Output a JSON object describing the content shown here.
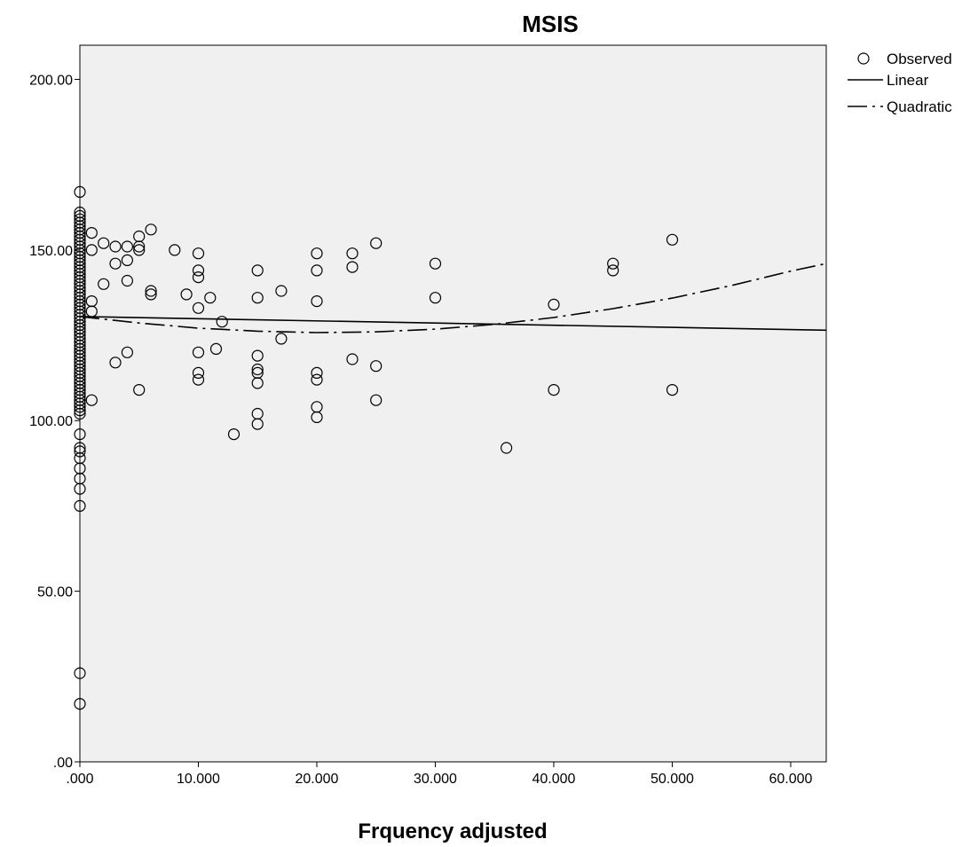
{
  "chart_data": {
    "type": "scatter",
    "title": "MSIS",
    "xlabel": "Frquency adjusted",
    "ylabel": "",
    "xlim": [
      0,
      63
    ],
    "ylim": [
      0,
      210
    ],
    "x_ticks": [
      0,
      10,
      20,
      30,
      40,
      50,
      60
    ],
    "x_tick_labels": [
      ".000",
      "10.000",
      "20.000",
      "30.000",
      "40.000",
      "50.000",
      "60.000"
    ],
    "y_ticks": [
      0,
      50,
      100,
      150,
      200
    ],
    "y_tick_labels": [
      ".00",
      "50.00",
      "100.00",
      "150.00",
      "200.00"
    ],
    "grid": false,
    "legend_position": "top-right",
    "colors": {
      "plot_background": "#f0f0f0",
      "axis": "#000000",
      "marker": "#000000"
    },
    "legend": [
      {
        "label": "Observed",
        "symbol": "circle"
      },
      {
        "label": "Linear",
        "symbol": "solid-line"
      },
      {
        "label": "Quadratic",
        "symbol": "dash-dot-line"
      }
    ],
    "series": [
      {
        "name": "Observed",
        "kind": "points",
        "points": [
          [
            0,
            167
          ],
          [
            0,
            161
          ],
          [
            0,
            160
          ],
          [
            0,
            159
          ],
          [
            0,
            158
          ],
          [
            0,
            157
          ],
          [
            0,
            156
          ],
          [
            0,
            155
          ],
          [
            0,
            154
          ],
          [
            0,
            153
          ],
          [
            0,
            152
          ],
          [
            0,
            151
          ],
          [
            0,
            150
          ],
          [
            0,
            149
          ],
          [
            0,
            148
          ],
          [
            0,
            147
          ],
          [
            0,
            146
          ],
          [
            0,
            145
          ],
          [
            0,
            144
          ],
          [
            0,
            143
          ],
          [
            0,
            142
          ],
          [
            0,
            141
          ],
          [
            0,
            140
          ],
          [
            0,
            139
          ],
          [
            0,
            138
          ],
          [
            0,
            137
          ],
          [
            0,
            136
          ],
          [
            0,
            135
          ],
          [
            0,
            134
          ],
          [
            0,
            133
          ],
          [
            0,
            132
          ],
          [
            0,
            131
          ],
          [
            0,
            130
          ],
          [
            0,
            129
          ],
          [
            0,
            128
          ],
          [
            0,
            127
          ],
          [
            0,
            126
          ],
          [
            0,
            125
          ],
          [
            0,
            124
          ],
          [
            0,
            123
          ],
          [
            0,
            122
          ],
          [
            0,
            121
          ],
          [
            0,
            120
          ],
          [
            0,
            119
          ],
          [
            0,
            118
          ],
          [
            0,
            117
          ],
          [
            0,
            116
          ],
          [
            0,
            115
          ],
          [
            0,
            114
          ],
          [
            0,
            113
          ],
          [
            0,
            112
          ],
          [
            0,
            111
          ],
          [
            0,
            110
          ],
          [
            0,
            109
          ],
          [
            0,
            108
          ],
          [
            0,
            107
          ],
          [
            0,
            106
          ],
          [
            0,
            105
          ],
          [
            0,
            104
          ],
          [
            0,
            103
          ],
          [
            0,
            102
          ],
          [
            0,
            96
          ],
          [
            0,
            92
          ],
          [
            0,
            91
          ],
          [
            0,
            89
          ],
          [
            0,
            86
          ],
          [
            0,
            83
          ],
          [
            0,
            80
          ],
          [
            0,
            75
          ],
          [
            0,
            26
          ],
          [
            0,
            17
          ],
          [
            1,
            155
          ],
          [
            1,
            150
          ],
          [
            1,
            135
          ],
          [
            1,
            132
          ],
          [
            1,
            106
          ],
          [
            2,
            152
          ],
          [
            2,
            140
          ],
          [
            3,
            151
          ],
          [
            3,
            146
          ],
          [
            3,
            117
          ],
          [
            4,
            151
          ],
          [
            4,
            147
          ],
          [
            4,
            141
          ],
          [
            4,
            120
          ],
          [
            5,
            154
          ],
          [
            5,
            151
          ],
          [
            5,
            150
          ],
          [
            5,
            109
          ],
          [
            6,
            156
          ],
          [
            6,
            138
          ],
          [
            6,
            137
          ],
          [
            8,
            150
          ],
          [
            9,
            137
          ],
          [
            10,
            149
          ],
          [
            10,
            144
          ],
          [
            10,
            142
          ],
          [
            10,
            133
          ],
          [
            10,
            120
          ],
          [
            10,
            114
          ],
          [
            10,
            112
          ],
          [
            11,
            136
          ],
          [
            11.5,
            121
          ],
          [
            12,
            129
          ],
          [
            13,
            96
          ],
          [
            15,
            144
          ],
          [
            15,
            136
          ],
          [
            15,
            119
          ],
          [
            15,
            115
          ],
          [
            15,
            114
          ],
          [
            15,
            111
          ],
          [
            15,
            102
          ],
          [
            15,
            99
          ],
          [
            17,
            138
          ],
          [
            17,
            124
          ],
          [
            20,
            149
          ],
          [
            20,
            144
          ],
          [
            20,
            135
          ],
          [
            20,
            114
          ],
          [
            20,
            112
          ],
          [
            20,
            104
          ],
          [
            20,
            101
          ],
          [
            23,
            149
          ],
          [
            23,
            145
          ],
          [
            23,
            118
          ],
          [
            25,
            152
          ],
          [
            25,
            116
          ],
          [
            25,
            106
          ],
          [
            30,
            146
          ],
          [
            30,
            136
          ],
          [
            36,
            92
          ],
          [
            40,
            134
          ],
          [
            40,
            109
          ],
          [
            45,
            146
          ],
          [
            45,
            144
          ],
          [
            50,
            153
          ],
          [
            50,
            109
          ]
        ]
      },
      {
        "name": "Linear",
        "kind": "line",
        "x": [
          0,
          63
        ],
        "y": [
          130.5,
          126.5
        ]
      },
      {
        "name": "Quadratic",
        "kind": "line",
        "x": [
          0,
          5,
          10,
          15,
          20,
          25,
          30,
          35,
          40,
          45,
          50,
          55,
          60,
          63
        ],
        "y": [
          130.5,
          128.6,
          127.1,
          126.2,
          125.8,
          126.0,
          126.8,
          128.2,
          130.2,
          132.8,
          135.9,
          139.6,
          143.8,
          146.0
        ]
      }
    ]
  }
}
